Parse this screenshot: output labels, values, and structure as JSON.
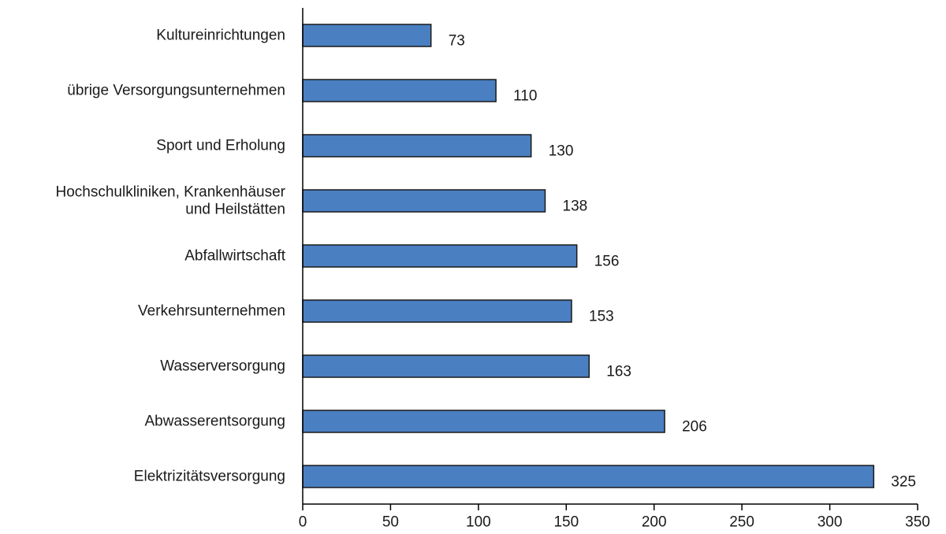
{
  "chart_data": {
    "type": "bar",
    "orientation": "horizontal",
    "categories": [
      [
        "Kultureinrichtungen"
      ],
      [
        "übrige Versorgungsunternehmen"
      ],
      [
        "Sport und Erholung"
      ],
      [
        "Hochschulkliniken, Krankenhäuser",
        "und Heilstätten"
      ],
      [
        "Abfallwirtschaft"
      ],
      [
        "Verkehrsunternehmen"
      ],
      [
        "Wasserversorgung"
      ],
      [
        "Abwasserentsorgung"
      ],
      [
        "Elektrizitätsversorgung"
      ]
    ],
    "values": [
      73,
      110,
      130,
      138,
      156,
      153,
      163,
      206,
      325
    ],
    "value_labels": [
      "73",
      "110",
      "130",
      "138",
      "156",
      "153",
      "163",
      "206",
      "325"
    ],
    "xlim": [
      0,
      350
    ],
    "xticks": [
      0,
      50,
      100,
      150,
      200,
      250,
      300,
      350
    ],
    "grid": false,
    "legend": "none",
    "colors": {
      "bar": "#4a7fc1",
      "bar_border": "#1a1a1a",
      "axis": "#000000",
      "text": "#1a1a1a"
    }
  }
}
